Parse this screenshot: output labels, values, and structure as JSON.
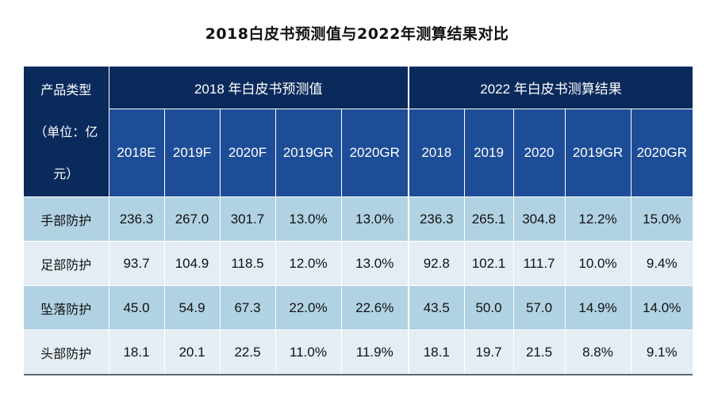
{
  "chart_data": {
    "type": "table",
    "title": "2018白皮书预测值与2022年测算结果对比",
    "row_header_label": [
      "产品类型",
      "（单位：亿",
      "元）"
    ],
    "groups": [
      "2018 年白皮书预测值",
      "2022 年白皮书测算结果"
    ],
    "columns": [
      "2018E",
      "2019F",
      "2020F",
      "2019GR",
      "2020GR",
      "2018",
      "2019",
      "2020",
      "2019GR",
      "2020GR"
    ],
    "rows": [
      {
        "label": "手部防护",
        "values": [
          "236.3",
          "267.0",
          "301.7",
          "13.0%",
          "13.0%",
          "236.3",
          "265.1",
          "304.8",
          "12.2%",
          "15.0%"
        ]
      },
      {
        "label": "足部防护",
        "values": [
          "93.7",
          "104.9",
          "118.5",
          "12.0%",
          "13.0%",
          "92.8",
          "102.1",
          "111.7",
          "10.0%",
          "9.4%"
        ]
      },
      {
        "label": "坠落防护",
        "values": [
          "45.0",
          "54.9",
          "67.3",
          "22.0%",
          "22.6%",
          "43.5",
          "50.0",
          "57.0",
          "14.9%",
          "14.0%"
        ]
      },
      {
        "label": "头部防护",
        "values": [
          "18.1",
          "20.1",
          "22.5",
          "11.0%",
          "11.9%",
          "18.1",
          "19.7",
          "21.5",
          "8.8%",
          "9.1%"
        ]
      }
    ]
  },
  "colors": {
    "header_dark": "#0b2a5c",
    "header_mid": "#1e4d98",
    "row_shaded": "#b1d2e3",
    "row_light": "#e4edf3"
  }
}
